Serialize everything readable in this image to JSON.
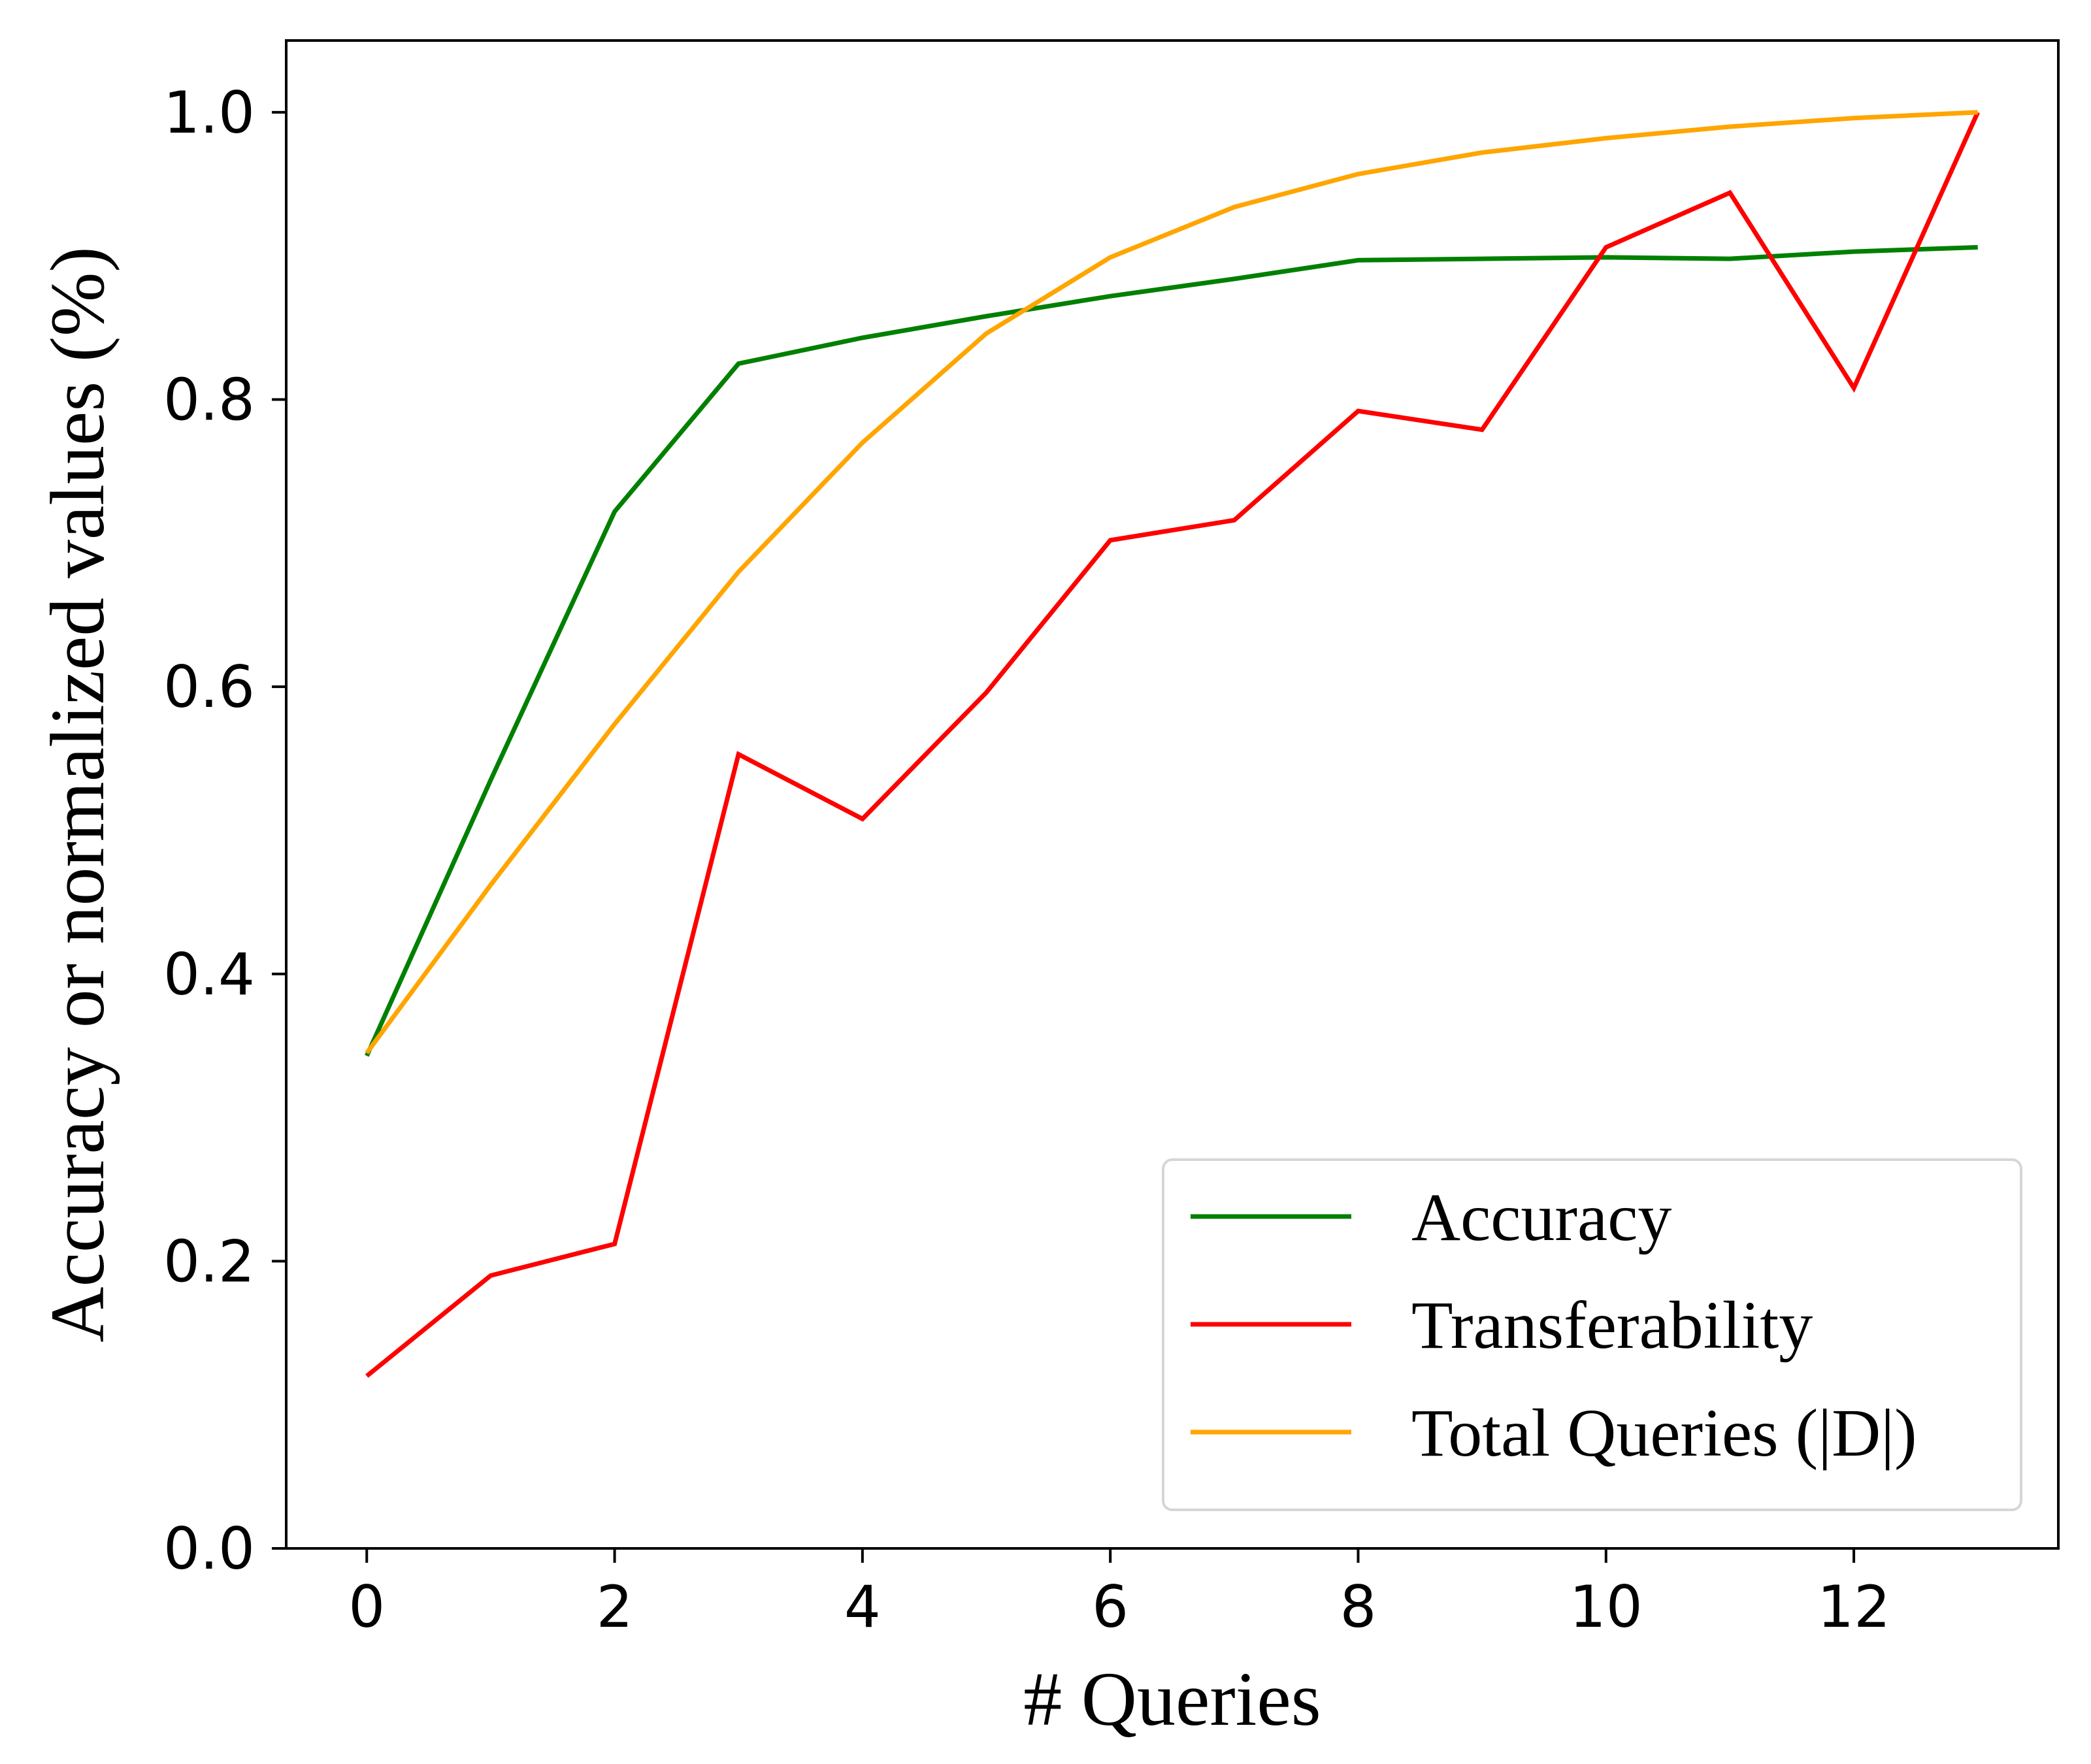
{
  "chart_data": {
    "type": "line",
    "title": "",
    "xlabel": "# Queries",
    "ylabel": "Accuracy or normalized values (%)",
    "xlim": [
      -0.65,
      13.65
    ],
    "ylim": [
      0.0,
      1.05
    ],
    "xticks": [
      0,
      2,
      4,
      6,
      8,
      10,
      12
    ],
    "xtick_labels": [
      "0",
      "2",
      "4",
      "6",
      "8",
      "10",
      "12"
    ],
    "yticks": [
      0.0,
      0.2,
      0.4,
      0.6,
      0.8,
      1.0
    ],
    "ytick_labels": [
      "0.0",
      "0.2",
      "0.4",
      "0.6",
      "0.8",
      "1.0"
    ],
    "grid": false,
    "legend_position": "lower-right",
    "x": [
      0,
      1,
      2,
      3,
      4,
      5,
      6,
      7,
      8,
      9,
      10,
      11,
      12,
      13
    ],
    "series": [
      {
        "name": "Accuracy",
        "color": "#008000",
        "values": [
          0.343,
          0.535,
          0.722,
          0.825,
          0.843,
          0.858,
          0.872,
          0.884,
          0.897,
          0.898,
          0.899,
          0.898,
          0.903,
          0.906
        ]
      },
      {
        "name": "Transferability",
        "color": "#ff0000",
        "values": [
          0.12,
          0.19,
          0.212,
          0.553,
          0.508,
          0.596,
          0.702,
          0.716,
          0.792,
          0.779,
          0.906,
          0.944,
          0.808,
          1.0
        ]
      },
      {
        "name": "Total Queries (|D|)",
        "color": "#ffa500",
        "values": [
          0.345,
          0.462,
          0.574,
          0.68,
          0.77,
          0.846,
          0.899,
          0.934,
          0.957,
          0.972,
          0.982,
          0.99,
          0.996,
          1.0
        ]
      }
    ]
  }
}
